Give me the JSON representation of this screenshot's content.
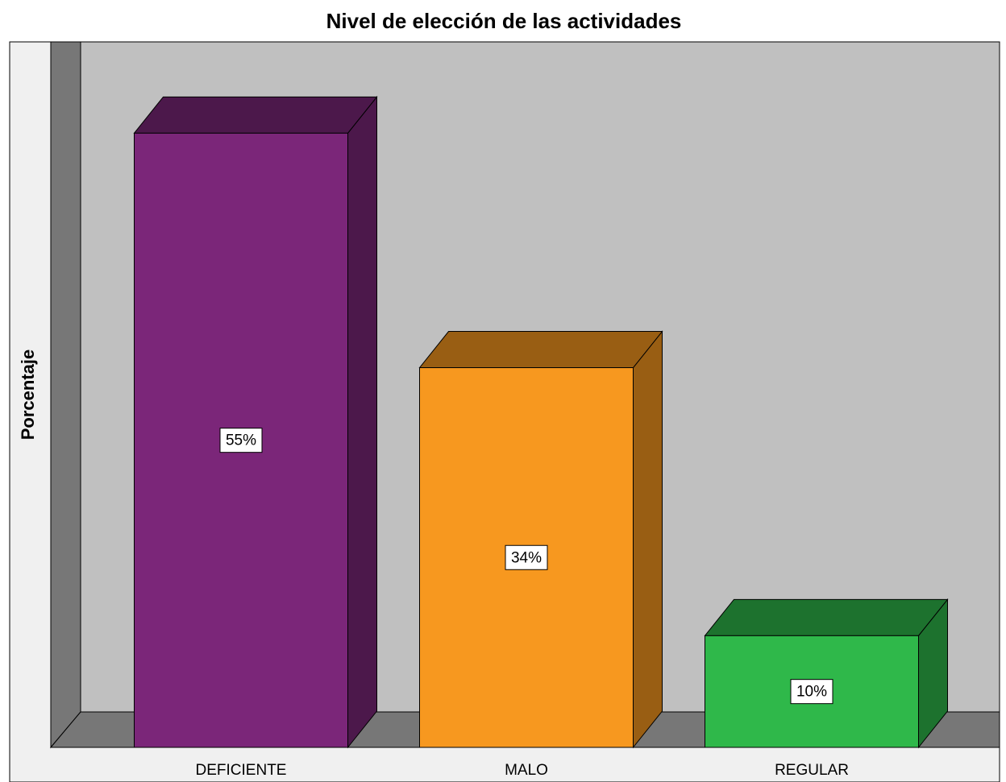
{
  "chart_data": {
    "type": "bar3d",
    "title": "Nivel de elección de las actividades",
    "y_label": "Porcentaje",
    "categories": [
      "DEFICIENTE",
      "MALO",
      "REGULAR"
    ],
    "values": [
      55,
      34,
      10
    ],
    "value_labels": [
      "55%",
      "34%",
      "10%"
    ],
    "colors": [
      "#7b2679",
      "#f7981f",
      "#2fb84a"
    ],
    "ylim": [
      0,
      60
    ]
  }
}
